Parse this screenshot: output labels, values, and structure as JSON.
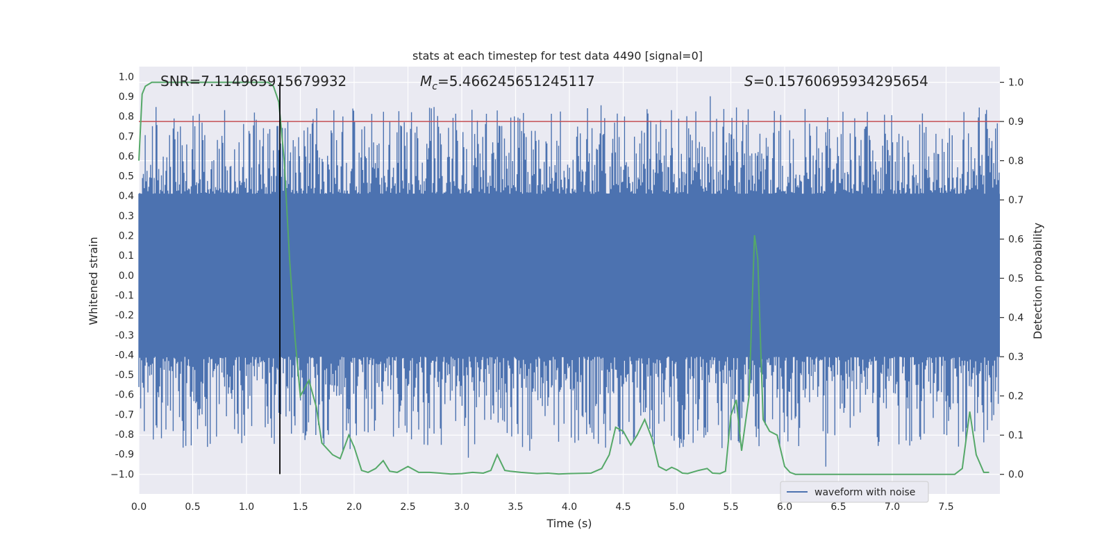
{
  "chart_data": {
    "type": "line",
    "title": "stats at each timestep for test data 4490 [signal=0]",
    "xlabel": "Time (s)",
    "ylabel": "Whitened strain",
    "y2label": "Detection probability",
    "xlim": [
      0,
      8.0
    ],
    "ylim": [
      -1.1,
      1.05
    ],
    "y2lim": [
      -0.05,
      1.04
    ],
    "xticks": [
      "0.0",
      "0.5",
      "1.0",
      "1.5",
      "2.0",
      "2.5",
      "3.0",
      "3.5",
      "4.0",
      "4.5",
      "5.0",
      "5.5",
      "6.0",
      "6.5",
      "7.0",
      "7.5"
    ],
    "yticks": [
      "1.0",
      "0.9",
      "0.8",
      "0.7",
      "0.6",
      "0.5",
      "0.4",
      "0.3",
      "0.2",
      "0.1",
      "0.0",
      "-0.1",
      "-0.2",
      "-0.3",
      "-0.4",
      "-0.5",
      "-0.6",
      "-0.7",
      "-0.8",
      "-0.9",
      "−1.0"
    ],
    "y2ticks": [
      "1.0",
      "0.9",
      "0.8",
      "0.7",
      "0.6",
      "0.5",
      "0.4",
      "0.3",
      "0.2",
      "0.1",
      "0.0"
    ],
    "annotations": {
      "snr": "SNR=7.114965915679932",
      "mc_symbol": "M",
      "mc_sub": "c",
      "mc_value": "=5.466245651245117",
      "s_symbol": "S",
      "s_value": "=0.15760695934295654"
    },
    "legend": {
      "label": "waveform with noise",
      "position": "lower-right"
    },
    "threshold": {
      "value": 0.9,
      "axis": "y2",
      "color": "#c44e52"
    },
    "marker_line": {
      "x": 1.31,
      "ymin": -1.0,
      "ymax": 0.97,
      "color": "#000000"
    },
    "series": [
      {
        "name": "waveform with noise",
        "axis": "y",
        "color": "#4c72b0",
        "kind": "noise",
        "envelope": 0.41,
        "spike_max": 0.97,
        "spike_min": -1.0
      },
      {
        "name": "detection probability",
        "axis": "y2",
        "color": "#55a868",
        "x": [
          0.0,
          0.03,
          0.06,
          0.12,
          0.2,
          0.3,
          0.4,
          0.5,
          0.6,
          0.7,
          0.8,
          0.9,
          1.0,
          1.1,
          1.2,
          1.25,
          1.3,
          1.35,
          1.4,
          1.45,
          1.5,
          1.58,
          1.65,
          1.7,
          1.8,
          1.87,
          1.95,
          2.0,
          2.07,
          2.13,
          2.2,
          2.27,
          2.33,
          2.4,
          2.5,
          2.6,
          2.7,
          2.8,
          2.9,
          3.0,
          3.1,
          3.2,
          3.27,
          3.33,
          3.4,
          3.45,
          3.55,
          3.7,
          3.8,
          3.9,
          4.0,
          4.2,
          4.3,
          4.37,
          4.43,
          4.5,
          4.57,
          4.63,
          4.7,
          4.77,
          4.83,
          4.9,
          4.95,
          5.0,
          5.05,
          5.1,
          5.2,
          5.28,
          5.33,
          5.4,
          5.45,
          5.5,
          5.55,
          5.6,
          5.67,
          5.72,
          5.75,
          5.8,
          5.86,
          5.93,
          6.0,
          6.05,
          6.1,
          6.2,
          6.4,
          6.6,
          6.8,
          7.0,
          7.2,
          7.4,
          7.58,
          7.65,
          7.72,
          7.78,
          7.85,
          7.9
        ],
        "values": [
          0.8,
          0.97,
          0.99,
          1.0,
          1.0,
          1.0,
          1.0,
          1.0,
          1.0,
          1.0,
          1.0,
          1.0,
          1.0,
          1.0,
          1.0,
          0.99,
          0.95,
          0.8,
          0.55,
          0.35,
          0.2,
          0.24,
          0.17,
          0.08,
          0.05,
          0.04,
          0.1,
          0.07,
          0.01,
          0.005,
          0.015,
          0.035,
          0.008,
          0.005,
          0.02,
          0.005,
          0.005,
          0.003,
          0.001,
          0.002,
          0.005,
          0.003,
          0.01,
          0.05,
          0.01,
          0.008,
          0.005,
          0.002,
          0.003,
          0.001,
          0.002,
          0.003,
          0.015,
          0.05,
          0.12,
          0.11,
          0.075,
          0.1,
          0.14,
          0.09,
          0.02,
          0.01,
          0.018,
          0.012,
          0.003,
          0.002,
          0.01,
          0.015,
          0.003,
          0.002,
          0.008,
          0.15,
          0.19,
          0.06,
          0.2,
          0.61,
          0.55,
          0.14,
          0.11,
          0.1,
          0.02,
          0.005,
          0.0,
          0.0,
          0.0,
          0.0,
          0.0,
          0.0,
          0.0,
          0.0,
          0.0,
          0.015,
          0.16,
          0.05,
          0.005,
          0.005
        ]
      }
    ]
  }
}
